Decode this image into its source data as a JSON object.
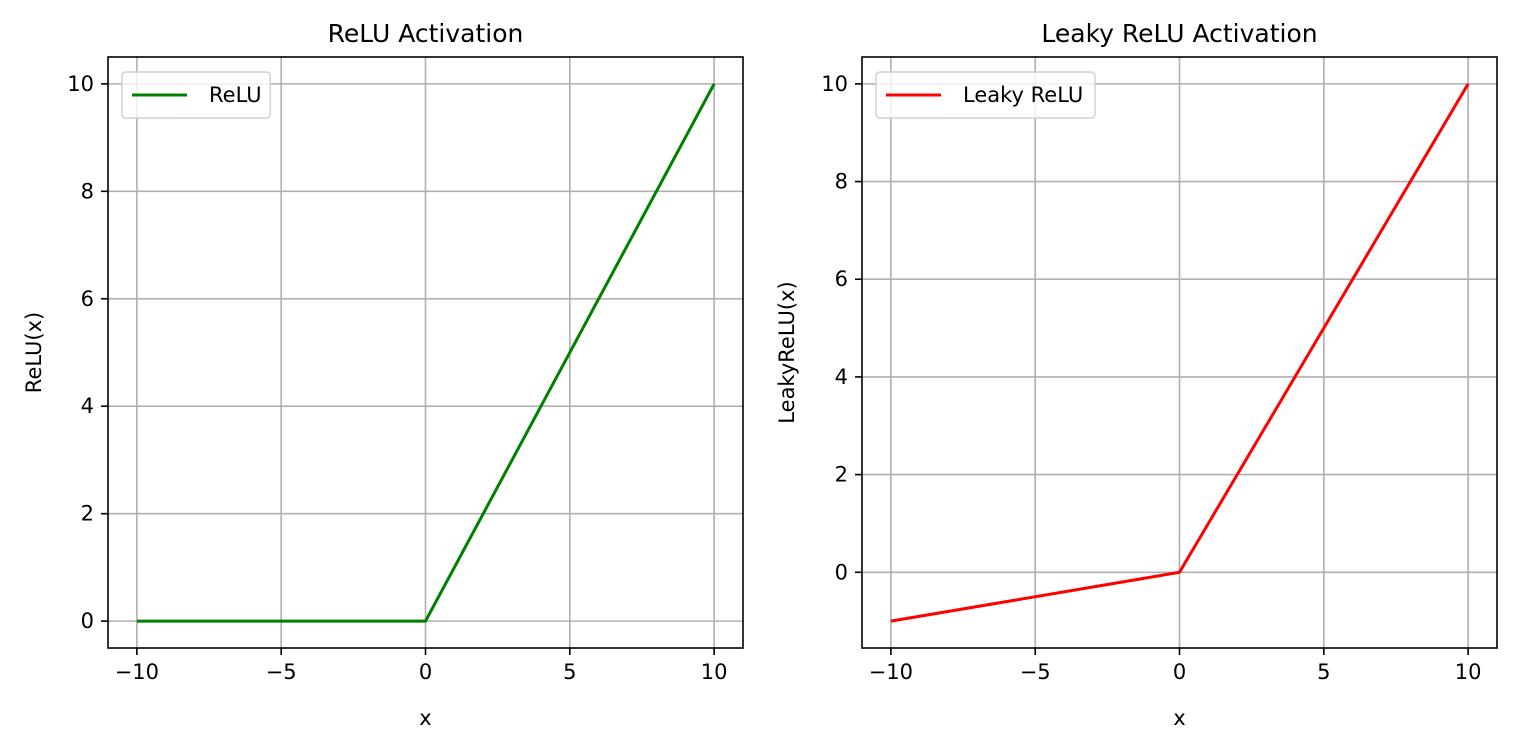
{
  "chart_data": [
    {
      "type": "line",
      "title": "ReLU Activation",
      "xlabel": "x",
      "ylabel": "ReLU(x)",
      "xlim": [
        -11,
        11
      ],
      "ylim": [
        -0.5,
        10.5
      ],
      "xticks": [
        -10,
        -5,
        0,
        5,
        10
      ],
      "xtick_labels": [
        "−10",
        "−5",
        "0",
        "5",
        "10"
      ],
      "yticks": [
        0,
        2,
        4,
        6,
        8,
        10
      ],
      "ytick_labels": [
        "0",
        "2",
        "4",
        "6",
        "8",
        "10"
      ],
      "grid": true,
      "legend": "upper-left",
      "series": [
        {
          "name": "ReLU",
          "color": "#008000",
          "x": [
            -10,
            0,
            10
          ],
          "y": [
            0,
            0,
            10
          ]
        }
      ]
    },
    {
      "type": "line",
      "title": "Leaky ReLU Activation",
      "xlabel": "x",
      "ylabel": "LeakyReLU(x)",
      "xlim": [
        -11,
        11
      ],
      "ylim": [
        -1.55,
        10.55
      ],
      "xticks": [
        -10,
        -5,
        0,
        5,
        10
      ],
      "xtick_labels": [
        "−10",
        "−5",
        "0",
        "5",
        "10"
      ],
      "yticks": [
        0,
        2,
        4,
        6,
        8,
        10
      ],
      "ytick_labels": [
        "0",
        "2",
        "4",
        "6",
        "8",
        "10"
      ],
      "grid": true,
      "legend": "upper-left",
      "series": [
        {
          "name": "Leaky ReLU",
          "color": "#ff0000",
          "x": [
            -10,
            0,
            10
          ],
          "y": [
            -1,
            0,
            10
          ]
        }
      ]
    }
  ]
}
